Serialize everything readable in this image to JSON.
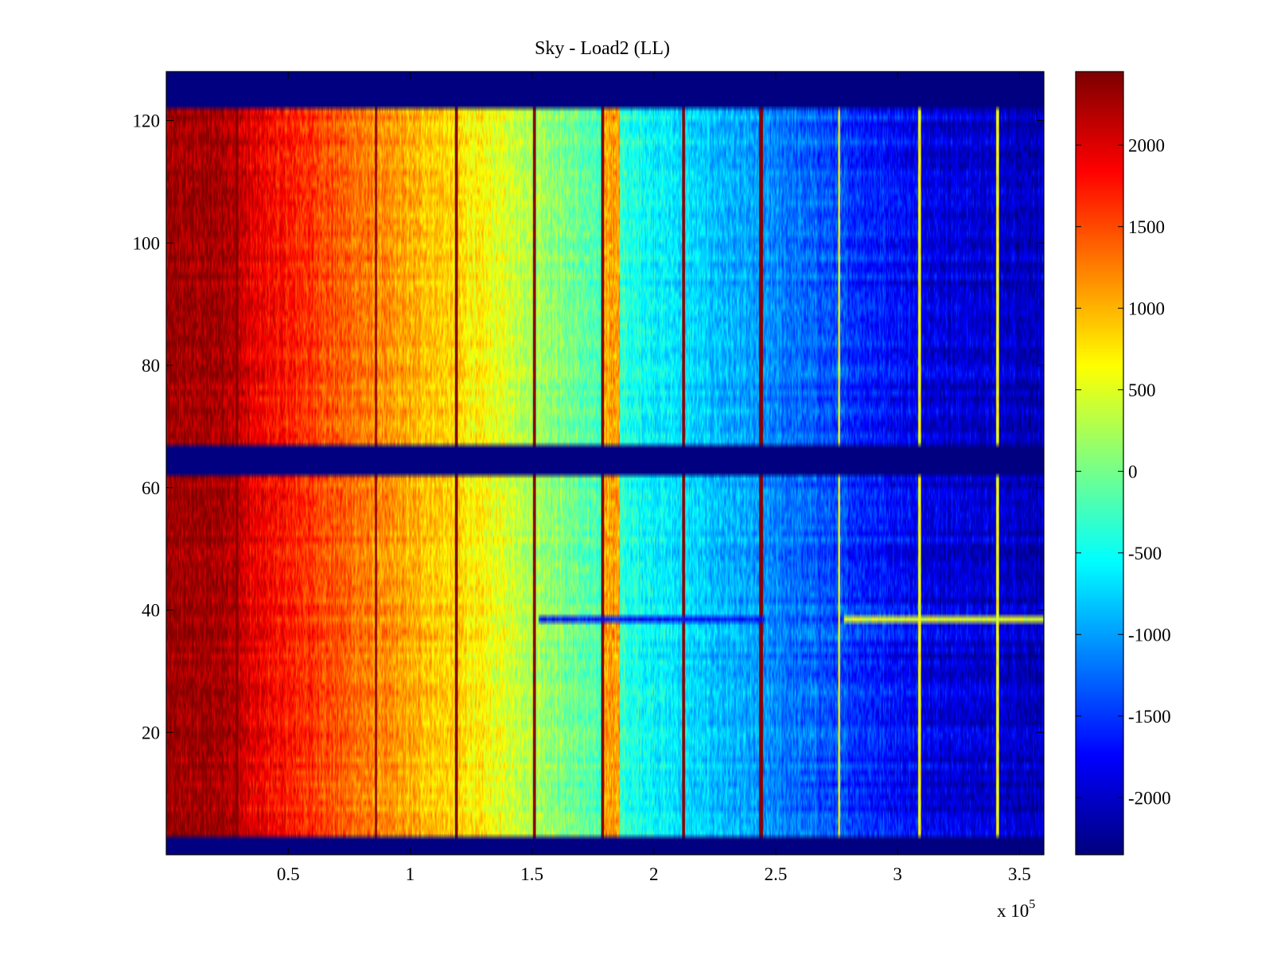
{
  "chart_data": {
    "type": "heatmap",
    "title": "Sky - Load2 (LL)",
    "xlabel": "",
    "ylabel": "",
    "x_scale_label": "x 10",
    "x_scale_exponent": "5",
    "xlim": [
      0,
      3.6
    ],
    "ylim": [
      0,
      128
    ],
    "x_ticks": [
      0.5,
      1,
      1.5,
      2,
      2.5,
      3,
      3.5
    ],
    "x_tick_labels": [
      "0.5",
      "1",
      "1.5",
      "2",
      "2.5",
      "3",
      "3.5"
    ],
    "y_ticks": [
      20,
      40,
      60,
      80,
      100,
      120
    ],
    "y_tick_labels": [
      "20",
      "40",
      "60",
      "80",
      "100",
      "120"
    ],
    "colorbar": {
      "colormap": "jet",
      "range": [
        -2350,
        2450
      ],
      "ticks": [
        2000,
        1500,
        1000,
        500,
        0,
        -500,
        -1000,
        -1500,
        -2000
      ],
      "tick_labels": [
        "2000",
        "1500",
        "1000",
        "500",
        "0",
        "-500",
        "-1000",
        "-1500",
        "-2000"
      ]
    },
    "masked_rows": [
      [
        0,
        3
      ],
      [
        62,
        67
      ],
      [
        122,
        128
      ]
    ],
    "masked_value": -2350,
    "trend_points": {
      "x": [
        0,
        0.25,
        0.35,
        0.6,
        0.9,
        1.2,
        1.5,
        1.75,
        2.0,
        2.3,
        2.6,
        2.9,
        3.2,
        3.6
      ],
      "value": [
        2300,
        2300,
        1950,
        1600,
        1150,
        800,
        300,
        -200,
        -550,
        -900,
        -1250,
        -1600,
        -1900,
        -2050
      ]
    },
    "hot_band": {
      "x": [
        1.79,
        1.86
      ],
      "value": 1100
    },
    "stripes_dark": [
      0.29,
      0.86,
      1.19,
      1.51,
      1.79,
      2.12,
      2.44
    ],
    "stripes_bright": [
      2.76,
      3.09,
      3.41
    ],
    "anomaly_row": {
      "y": 38.5,
      "segments": [
        [
          1.53,
          2.45,
          -1700
        ],
        [
          2.78,
          3.6,
          500
        ]
      ]
    }
  }
}
